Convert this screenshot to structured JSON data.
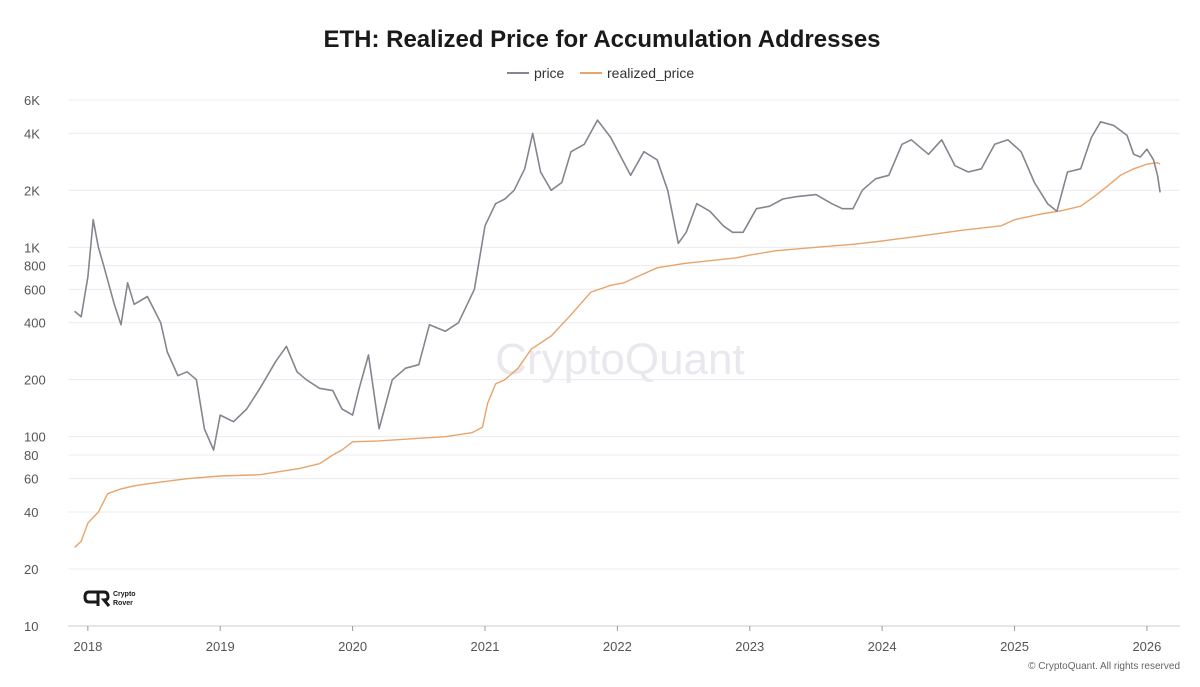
{
  "chart_data": {
    "type": "line",
    "title": "ETH: Realized Price for Accumulation Addresses",
    "xlabel": "",
    "ylabel": "",
    "x_range": [
      2017.85,
      2026.25
    ],
    "ylim": [
      10,
      6000
    ],
    "y_scale": "log",
    "grid": "horizontal",
    "legend_position": "top-center",
    "x_ticks": [
      "2018",
      "2019",
      "2020",
      "2021",
      "2022",
      "2023",
      "2024",
      "2025",
      "2026"
    ],
    "y_ticks": [
      {
        "value": 10,
        "label": "10"
      },
      {
        "value": 20,
        "label": "20"
      },
      {
        "value": 40,
        "label": "40"
      },
      {
        "value": 60,
        "label": "60"
      },
      {
        "value": 80,
        "label": "80"
      },
      {
        "value": 100,
        "label": "100"
      },
      {
        "value": 200,
        "label": "200"
      },
      {
        "value": 400,
        "label": "400"
      },
      {
        "value": 600,
        "label": "600"
      },
      {
        "value": 800,
        "label": "800"
      },
      {
        "value": 1000,
        "label": "1K"
      },
      {
        "value": 2000,
        "label": "2K"
      },
      {
        "value": 4000,
        "label": "4K"
      },
      {
        "value": 6000,
        "label": "6K"
      }
    ],
    "series": [
      {
        "name": "price",
        "color": "#858590",
        "points": [
          [
            2017.9,
            460
          ],
          [
            2017.95,
            430
          ],
          [
            2018.0,
            700
          ],
          [
            2018.04,
            1400
          ],
          [
            2018.08,
            1000
          ],
          [
            2018.12,
            800
          ],
          [
            2018.2,
            500
          ],
          [
            2018.25,
            390
          ],
          [
            2018.3,
            650
          ],
          [
            2018.35,
            500
          ],
          [
            2018.45,
            550
          ],
          [
            2018.55,
            400
          ],
          [
            2018.6,
            280
          ],
          [
            2018.68,
            210
          ],
          [
            2018.75,
            220
          ],
          [
            2018.82,
            200
          ],
          [
            2018.88,
            110
          ],
          [
            2018.95,
            85
          ],
          [
            2019.0,
            130
          ],
          [
            2019.1,
            120
          ],
          [
            2019.2,
            140
          ],
          [
            2019.3,
            180
          ],
          [
            2019.42,
            250
          ],
          [
            2019.5,
            300
          ],
          [
            2019.58,
            220
          ],
          [
            2019.65,
            200
          ],
          [
            2019.75,
            180
          ],
          [
            2019.85,
            175
          ],
          [
            2019.92,
            140
          ],
          [
            2020.0,
            130
          ],
          [
            2020.05,
            180
          ],
          [
            2020.12,
            270
          ],
          [
            2020.2,
            110
          ],
          [
            2020.3,
            200
          ],
          [
            2020.4,
            230
          ],
          [
            2020.5,
            240
          ],
          [
            2020.58,
            390
          ],
          [
            2020.7,
            360
          ],
          [
            2020.8,
            400
          ],
          [
            2020.92,
            600
          ],
          [
            2021.0,
            1300
          ],
          [
            2021.08,
            1700
          ],
          [
            2021.15,
            1800
          ],
          [
            2021.22,
            2000
          ],
          [
            2021.3,
            2600
          ],
          [
            2021.36,
            4000
          ],
          [
            2021.42,
            2500
          ],
          [
            2021.5,
            2000
          ],
          [
            2021.58,
            2200
          ],
          [
            2021.65,
            3200
          ],
          [
            2021.75,
            3500
          ],
          [
            2021.85,
            4700
          ],
          [
            2021.95,
            3800
          ],
          [
            2022.05,
            2800
          ],
          [
            2022.1,
            2400
          ],
          [
            2022.2,
            3200
          ],
          [
            2022.3,
            2900
          ],
          [
            2022.38,
            2000
          ],
          [
            2022.46,
            1050
          ],
          [
            2022.52,
            1200
          ],
          [
            2022.6,
            1700
          ],
          [
            2022.7,
            1550
          ],
          [
            2022.8,
            1300
          ],
          [
            2022.87,
            1200
          ],
          [
            2022.95,
            1200
          ],
          [
            2023.05,
            1600
          ],
          [
            2023.15,
            1650
          ],
          [
            2023.25,
            1800
          ],
          [
            2023.35,
            1850
          ],
          [
            2023.5,
            1900
          ],
          [
            2023.62,
            1700
          ],
          [
            2023.7,
            1600
          ],
          [
            2023.78,
            1600
          ],
          [
            2023.85,
            2000
          ],
          [
            2023.95,
            2300
          ],
          [
            2024.05,
            2400
          ],
          [
            2024.15,
            3500
          ],
          [
            2024.22,
            3700
          ],
          [
            2024.35,
            3100
          ],
          [
            2024.45,
            3700
          ],
          [
            2024.55,
            2700
          ],
          [
            2024.65,
            2500
          ],
          [
            2024.75,
            2600
          ],
          [
            2024.85,
            3500
          ],
          [
            2024.95,
            3700
          ],
          [
            2025.05,
            3200
          ],
          [
            2025.15,
            2200
          ],
          [
            2025.25,
            1700
          ],
          [
            2025.32,
            1550
          ],
          [
            2025.4,
            2500
          ],
          [
            2025.5,
            2600
          ],
          [
            2025.58,
            3800
          ],
          [
            2025.65,
            4600
          ],
          [
            2025.75,
            4400
          ],
          [
            2025.85,
            3900
          ],
          [
            2025.9,
            3100
          ],
          [
            2025.95,
            3000
          ],
          [
            2026.0,
            3300
          ],
          [
            2026.05,
            2900
          ],
          [
            2026.08,
            2400
          ],
          [
            2026.1,
            1950
          ]
        ]
      },
      {
        "name": "realized_price",
        "color": "#e8a46a",
        "points": [
          [
            2017.9,
            26
          ],
          [
            2017.95,
            28
          ],
          [
            2018.0,
            35
          ],
          [
            2018.08,
            40
          ],
          [
            2018.15,
            50
          ],
          [
            2018.25,
            53
          ],
          [
            2018.35,
            55
          ],
          [
            2018.5,
            57
          ],
          [
            2018.75,
            60
          ],
          [
            2019.0,
            62
          ],
          [
            2019.3,
            63
          ],
          [
            2019.6,
            68
          ],
          [
            2019.75,
            72
          ],
          [
            2019.85,
            80
          ],
          [
            2019.92,
            85
          ],
          [
            2020.0,
            94
          ],
          [
            2020.2,
            95
          ],
          [
            2020.5,
            98
          ],
          [
            2020.7,
            100
          ],
          [
            2020.9,
            105
          ],
          [
            2020.98,
            112
          ],
          [
            2021.02,
            150
          ],
          [
            2021.08,
            190
          ],
          [
            2021.15,
            200
          ],
          [
            2021.25,
            230
          ],
          [
            2021.35,
            290
          ],
          [
            2021.5,
            340
          ],
          [
            2021.65,
            440
          ],
          [
            2021.8,
            580
          ],
          [
            2021.95,
            630
          ],
          [
            2022.05,
            650
          ],
          [
            2022.15,
            700
          ],
          [
            2022.3,
            780
          ],
          [
            2022.5,
            820
          ],
          [
            2022.7,
            850
          ],
          [
            2022.9,
            880
          ],
          [
            2023.0,
            910
          ],
          [
            2023.2,
            960
          ],
          [
            2023.5,
            1000
          ],
          [
            2023.8,
            1040
          ],
          [
            2024.0,
            1080
          ],
          [
            2024.3,
            1150
          ],
          [
            2024.6,
            1230
          ],
          [
            2024.9,
            1300
          ],
          [
            2025.0,
            1400
          ],
          [
            2025.2,
            1500
          ],
          [
            2025.35,
            1560
          ],
          [
            2025.5,
            1650
          ],
          [
            2025.6,
            1850
          ],
          [
            2025.7,
            2100
          ],
          [
            2025.8,
            2400
          ],
          [
            2025.9,
            2600
          ],
          [
            2026.0,
            2750
          ],
          [
            2026.08,
            2800
          ],
          [
            2026.1,
            2750
          ]
        ]
      }
    ]
  },
  "watermark": "CryptoQuant",
  "copyright": "© CryptoQuant. All rights reserved",
  "logo": {
    "line1": "Crypto",
    "line2": "Rover"
  }
}
